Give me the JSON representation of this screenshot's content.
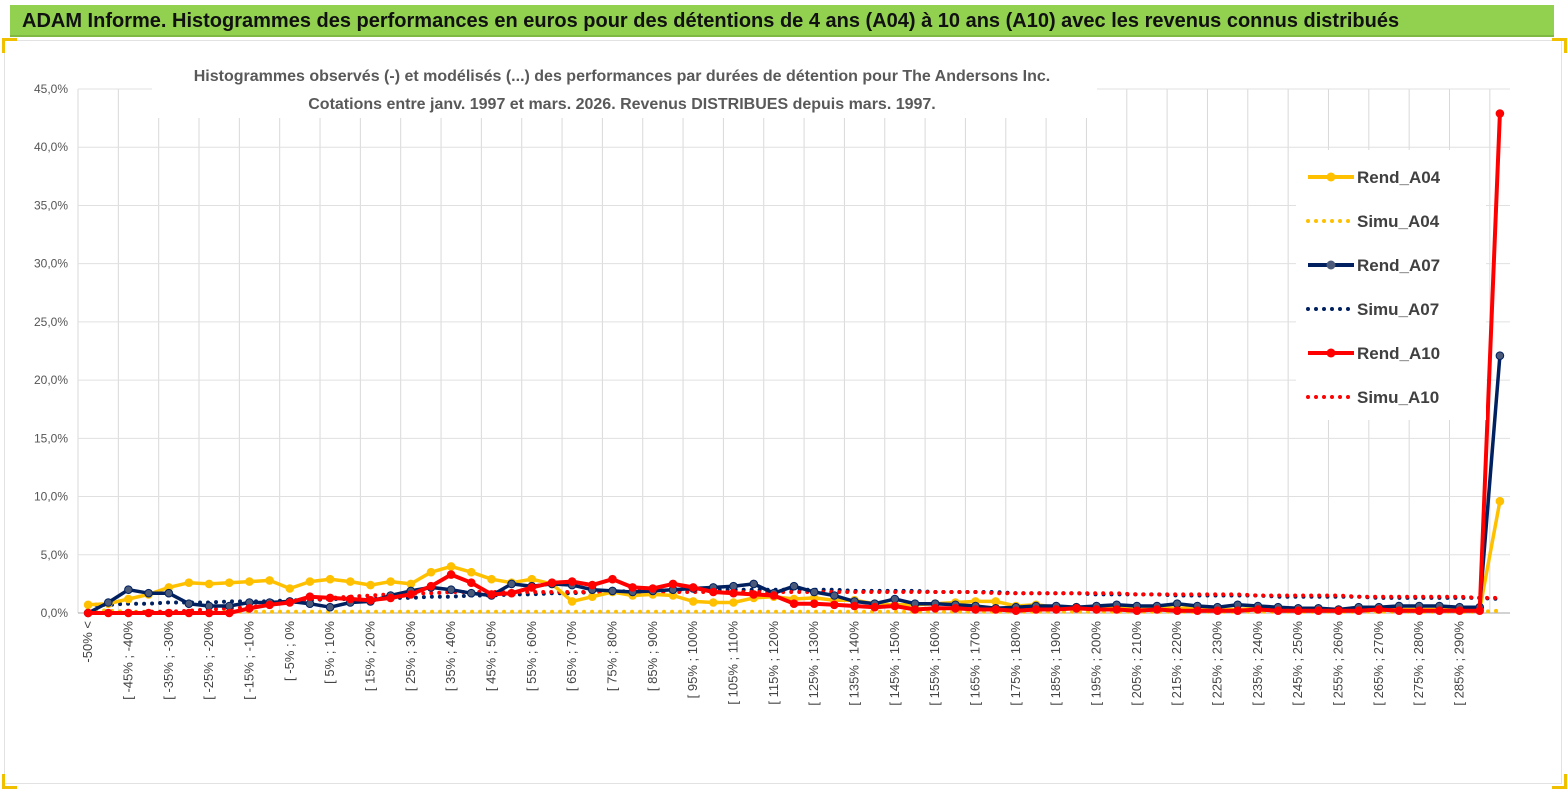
{
  "header": {
    "title": "ADAM Informe. Histogrammes des performances en euros pour des détentions de 4 ans (A04) à 10 ans (A10) avec les revenus connus distribués"
  },
  "chart_data": {
    "type": "line",
    "title_line1": "Histogrammes observés (-) et modélisés (...) des performances par durées de détention pour The Andersons Inc.",
    "title_line2": "Cotations entre janv. 1997 et mars. 2026. Revenus DISTRIBUES depuis mars. 1997.",
    "ylim": [
      0,
      45
    ],
    "yticks": [
      "0,0%",
      "5,0%",
      "10,0%",
      "15,0%",
      "20,0%",
      "25,0%",
      "30,0%",
      "35,0%",
      "40,0%",
      "45,0%"
    ],
    "grid": true,
    "legend_position": "right",
    "x_labels": [
      "-50% <",
      "[ -45% ; -40%",
      "[ -35% ; -30%",
      "[ -25% ; -20%",
      "[ -15% ; -10%",
      "[ -5% ; 0%",
      "[ 5% ; 10%",
      "[ 15% ; 20%",
      "[ 25% ; 30%",
      "[ 35% ; 40%",
      "[ 45% ; 50%",
      "[ 55% ; 60%",
      "[ 65% ; 70%",
      "[ 75% ; 80%",
      "[ 85% ; 90%",
      "[ 95% ; 100%",
      "[ 105% ; 110%",
      "[ 115% ; 120%",
      "[ 125% ; 130%",
      "[ 135% ; 140%",
      "[ 145% ; 150%",
      "[ 155% ; 160%",
      "[ 165% ; 170%",
      "[ 175% ; 180%",
      "[ 185% ; 190%",
      "[ 195% ; 200%",
      "[ 205% ; 210%",
      "[ 215% ; 220%",
      "[ 225% ; 230%",
      "[ 235% ; 240%",
      "[ 245% ; 250%",
      "[ 255% ; 260%",
      "[ 265% ; 270%",
      "[ 275% ; 280%",
      "[ 285% ; 290%"
    ],
    "series": [
      {
        "name": "Rend_A04",
        "color": "#ffc000",
        "style": "solid",
        "markers": true,
        "values": [
          0.7,
          0.8,
          1.2,
          1.6,
          2.2,
          2.6,
          2.5,
          2.6,
          2.7,
          2.8,
          2.1,
          2.7,
          2.9,
          2.7,
          2.4,
          2.7,
          2.5,
          3.5,
          4.0,
          3.5,
          2.9,
          2.6,
          2.9,
          2.5,
          1.0,
          1.4,
          1.8,
          1.5,
          1.6,
          1.5,
          1.0,
          0.9,
          0.9,
          1.3,
          1.4,
          1.2,
          1.3,
          1.1,
          1.1,
          0.8,
          0.7,
          0.7,
          0.8,
          0.9,
          1.0,
          1.0,
          0.6,
          0.7,
          0.5,
          0.5,
          0.4,
          0.5,
          0.4,
          0.5,
          0.4,
          0.4,
          0.3,
          0.3,
          0.4,
          0.3,
          0.3,
          0.3,
          0.3,
          0.4,
          0.3,
          0.3,
          0.3,
          0.3,
          0.3,
          0.3,
          9.6
        ]
      },
      {
        "name": "Simu_A04",
        "color": "#ffc000",
        "style": "dotted",
        "markers": false,
        "values": [
          0.3,
          0.2,
          0.1,
          0.1,
          0.1,
          0.1,
          0.1,
          0.1,
          0.1,
          0.1,
          0.1,
          0.1,
          0.1,
          0.1,
          0.1,
          0.1,
          0.1,
          0.1,
          0.1,
          0.1,
          0.1,
          0.1,
          0.1,
          0.1,
          0.1,
          0.1,
          0.1,
          0.1,
          0.1,
          0.1,
          0.1,
          0.1,
          0.1,
          0.1,
          0.1,
          0.1,
          0.1,
          0.1,
          0.1,
          0.1,
          0.1,
          0.1,
          0.1,
          0.1,
          0.1,
          0.1,
          0.1,
          0.1,
          0.1,
          0.1,
          0.1,
          0.1,
          0.1,
          0.1,
          0.1,
          0.1,
          0.1,
          0.1,
          0.1,
          0.1,
          0.1,
          0.1,
          0.1,
          0.1,
          0.1,
          0.1,
          0.1,
          0.1,
          0.1,
          0.1,
          0.2
        ]
      },
      {
        "name": "Rend_A07",
        "color": "#002060",
        "style": "solid",
        "markers": true,
        "values": [
          0.0,
          0.9,
          2.0,
          1.7,
          1.7,
          0.8,
          0.6,
          0.6,
          0.9,
          0.9,
          1.0,
          0.8,
          0.5,
          0.9,
          1.0,
          1.5,
          1.9,
          2.2,
          2.0,
          1.7,
          1.5,
          2.5,
          2.3,
          2.5,
          2.4,
          2.0,
          1.9,
          1.8,
          1.9,
          2.0,
          2.1,
          2.2,
          2.3,
          2.5,
          1.7,
          2.3,
          1.8,
          1.5,
          1.0,
          0.8,
          1.2,
          0.8,
          0.8,
          0.7,
          0.6,
          0.4,
          0.5,
          0.6,
          0.6,
          0.5,
          0.6,
          0.7,
          0.6,
          0.6,
          0.8,
          0.6,
          0.5,
          0.7,
          0.6,
          0.5,
          0.4,
          0.4,
          0.3,
          0.5,
          0.5,
          0.6,
          0.6,
          0.6,
          0.5,
          0.5,
          22.1
        ]
      },
      {
        "name": "Simu_A07",
        "color": "#002060",
        "style": "dotted",
        "markers": false,
        "values": [
          0.7,
          0.7,
          0.8,
          0.8,
          0.9,
          0.9,
          0.9,
          1.0,
          1.0,
          1.0,
          1.1,
          1.1,
          1.2,
          1.2,
          1.2,
          1.3,
          1.3,
          1.4,
          1.4,
          1.5,
          1.5,
          1.6,
          1.6,
          1.7,
          1.7,
          1.8,
          1.8,
          1.9,
          1.9,
          1.9,
          2.0,
          2.0,
          2.0,
          2.0,
          2.0,
          2.0,
          2.0,
          2.0,
          1.9,
          1.9,
          1.9,
          1.9,
          1.8,
          1.8,
          1.8,
          1.8,
          1.7,
          1.7,
          1.7,
          1.7,
          1.6,
          1.6,
          1.6,
          1.6,
          1.5,
          1.5,
          1.5,
          1.5,
          1.5,
          1.4,
          1.4,
          1.4,
          1.4,
          1.4,
          1.3,
          1.3,
          1.3,
          1.3,
          1.3,
          1.3,
          1.2
        ]
      },
      {
        "name": "Rend_A10",
        "color": "#ff0000",
        "style": "solid",
        "markers": true,
        "values": [
          0.0,
          0.0,
          0.0,
          0.0,
          0.0,
          0.0,
          0.0,
          0.0,
          0.4,
          0.7,
          0.9,
          1.4,
          1.3,
          1.2,
          1.1,
          1.3,
          1.6,
          2.3,
          3.3,
          2.6,
          1.6,
          1.7,
          2.2,
          2.6,
          2.7,
          2.4,
          2.9,
          2.2,
          2.1,
          2.5,
          2.2,
          1.8,
          1.7,
          1.6,
          1.5,
          0.8,
          0.8,
          0.7,
          0.6,
          0.5,
          0.6,
          0.3,
          0.4,
          0.4,
          0.3,
          0.3,
          0.2,
          0.3,
          0.3,
          0.4,
          0.3,
          0.3,
          0.2,
          0.3,
          0.2,
          0.2,
          0.2,
          0.2,
          0.3,
          0.2,
          0.2,
          0.2,
          0.2,
          0.2,
          0.3,
          0.2,
          0.2,
          0.2,
          0.2,
          0.2,
          42.9
        ]
      },
      {
        "name": "Simu_A10",
        "color": "#ff0000",
        "style": "dotted",
        "markers": false,
        "values": [
          0.0,
          0.0,
          0.0,
          0.1,
          0.1,
          0.2,
          0.3,
          0.4,
          0.5,
          0.7,
          0.9,
          1.1,
          1.3,
          1.4,
          1.5,
          1.6,
          1.7,
          1.7,
          1.8,
          1.8,
          1.8,
          1.8,
          1.8,
          1.8,
          1.8,
          1.8,
          1.8,
          1.8,
          1.8,
          1.8,
          1.8,
          1.8,
          1.8,
          1.8,
          1.8,
          1.8,
          1.8,
          1.8,
          1.8,
          1.8,
          1.8,
          1.8,
          1.8,
          1.8,
          1.8,
          1.7,
          1.7,
          1.7,
          1.7,
          1.7,
          1.7,
          1.7,
          1.6,
          1.6,
          1.6,
          1.6,
          1.6,
          1.6,
          1.5,
          1.5,
          1.5,
          1.5,
          1.5,
          1.4,
          1.4,
          1.4,
          1.4,
          1.4,
          1.4,
          1.3,
          1.3
        ]
      }
    ]
  }
}
